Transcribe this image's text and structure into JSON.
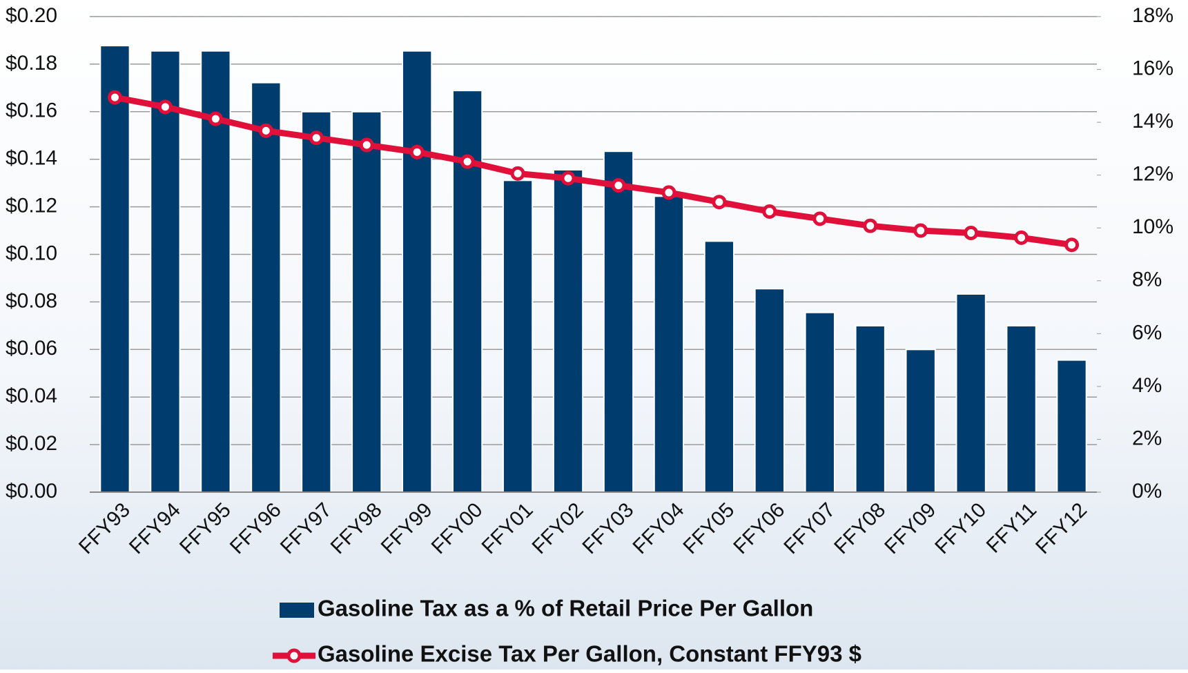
{
  "chart_data": {
    "type": "bar",
    "categories": [
      "FFY93",
      "FFY94",
      "FFY95",
      "FFY96",
      "FFY97",
      "FFY98",
      "FFY99",
      "FFY00",
      "FFY01",
      "FFY02",
      "FFY03",
      "FFY04",
      "FFY05",
      "FFY06",
      "FFY07",
      "FFY08",
      "FFY09",
      "FFY10",
      "FFY11",
      "FFY12"
    ],
    "series": [
      {
        "name": "Gasoline Tax as a % of Retail Price Per Gallon",
        "type": "bar",
        "axis": "y2",
        "color": "#003d6e",
        "values": [
          16.9,
          16.7,
          16.7,
          15.5,
          14.4,
          14.4,
          16.7,
          15.2,
          11.8,
          12.2,
          12.9,
          11.2,
          9.5,
          7.7,
          6.8,
          6.3,
          5.4,
          7.5,
          6.3,
          5.0
        ]
      },
      {
        "name": "Gasoline Excise Tax Per Gallon, Constant FFY93 $",
        "type": "line",
        "color": "#e0103a",
        "values": [
          0.166,
          0.162,
          0.157,
          0.152,
          0.149,
          0.146,
          0.143,
          0.139,
          0.134,
          0.132,
          0.129,
          0.126,
          0.122,
          0.118,
          0.115,
          0.112,
          0.11,
          0.109,
          0.107,
          0.104
        ]
      }
    ],
    "ylim": [
      0,
      0.2
    ],
    "yticks": [
      {
        "value": 0,
        "label": "$0.00"
      },
      {
        "value": 0.02,
        "label": "$0.02"
      },
      {
        "value": 0.04,
        "label": "$0.04"
      },
      {
        "value": 0.06,
        "label": "$0.06"
      },
      {
        "value": 0.08,
        "label": "$0.08"
      },
      {
        "value": 0.1,
        "label": "$0.10"
      },
      {
        "value": 0.12,
        "label": "$0.12"
      },
      {
        "value": 0.14,
        "label": "$0.14"
      },
      {
        "value": 0.16,
        "label": "$0.16"
      },
      {
        "value": 0.18,
        "label": "$0.18"
      },
      {
        "value": 0.2,
        "label": "$0.20"
      }
    ],
    "y2lim": [
      0,
      18
    ],
    "y2ticks": [
      {
        "value": 0,
        "label": "0%"
      },
      {
        "value": 2,
        "label": "2%"
      },
      {
        "value": 4,
        "label": "4%"
      },
      {
        "value": 6,
        "label": "6%"
      },
      {
        "value": 8,
        "label": "8%"
      },
      {
        "value": 10,
        "label": "10%"
      },
      {
        "value": 12,
        "label": "12%"
      },
      {
        "value": 14,
        "label": "14%"
      },
      {
        "value": 16,
        "label": "16%"
      },
      {
        "value": 18,
        "label": "18%"
      }
    ],
    "grid": true,
    "legend": "bottom"
  }
}
